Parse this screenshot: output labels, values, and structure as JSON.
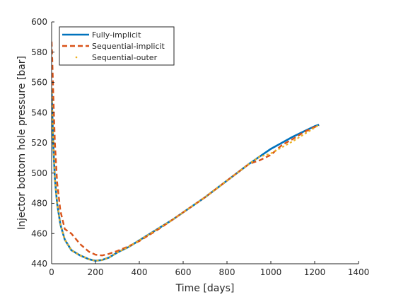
{
  "chart_data": {
    "type": "line",
    "title": "",
    "xlabel": "Time [days]",
    "ylabel": "Injector bottom hole pressure [bar]",
    "xlim": [
      0,
      1400
    ],
    "ylim": [
      440,
      600
    ],
    "xticks": [
      0,
      200,
      400,
      600,
      800,
      1000,
      1200,
      1400
    ],
    "yticks": [
      440,
      460,
      480,
      500,
      520,
      540,
      560,
      580,
      600
    ],
    "grid": false,
    "legend_position": "top-left",
    "series": [
      {
        "name": "Fully-implicit",
        "color": "#0072BD",
        "style": "solid",
        "x": [
          0,
          3,
          8,
          15,
          25,
          40,
          60,
          90,
          130,
          170,
          200,
          230,
          260,
          300,
          350,
          400,
          450,
          500,
          550,
          600,
          650,
          700,
          750,
          800,
          850,
          900,
          950,
          1000,
          1050,
          1100,
          1150,
          1200,
          1220
        ],
        "y": [
          556,
          540,
          517,
          496,
          480,
          466,
          456,
          449,
          445.5,
          443,
          442,
          442.5,
          444,
          447.5,
          451,
          455.5,
          460,
          464.5,
          469,
          474,
          479,
          484,
          489.5,
          495,
          500.5,
          506,
          511,
          516,
          520,
          524,
          527.5,
          531,
          532
        ]
      },
      {
        "name": "Sequential-implicit",
        "color": "#D95319",
        "style": "dashed",
        "x": [
          0,
          3,
          8,
          15,
          25,
          40,
          60,
          90,
          130,
          170,
          200,
          230,
          260,
          300,
          350,
          400,
          450,
          500,
          550,
          600,
          650,
          700,
          750,
          800,
          850,
          900,
          950,
          1000,
          1050,
          1100,
          1150,
          1200,
          1220
        ],
        "y": [
          587,
          575,
          550,
          520,
          494,
          475,
          463,
          460,
          453,
          448,
          446,
          445.5,
          446.5,
          448.5,
          451.5,
          455,
          459.5,
          464,
          469,
          474,
          479,
          484,
          489.5,
          495,
          500.5,
          506,
          508.5,
          512,
          518.5,
          522.5,
          527,
          530.5,
          531.5
        ]
      },
      {
        "name": "Sequential-outer",
        "color": "#EDB120",
        "style": "dotted",
        "x": [
          0,
          3,
          8,
          15,
          25,
          40,
          60,
          90,
          130,
          170,
          200,
          230,
          260,
          300,
          350,
          400,
          450,
          500,
          550,
          600,
          650,
          700,
          750,
          800,
          850,
          900,
          950,
          980,
          1000,
          1050,
          1100,
          1150,
          1200,
          1220
        ],
        "y": [
          556,
          540,
          517,
          496,
          480,
          466,
          456,
          449,
          445.5,
          443,
          442,
          442.5,
          444,
          447.5,
          451,
          455.5,
          460,
          464.5,
          469,
          474,
          479,
          484,
          489.5,
          495,
          500.5,
          506,
          511,
          512,
          513,
          517,
          521,
          525.5,
          530,
          532
        ]
      }
    ]
  }
}
